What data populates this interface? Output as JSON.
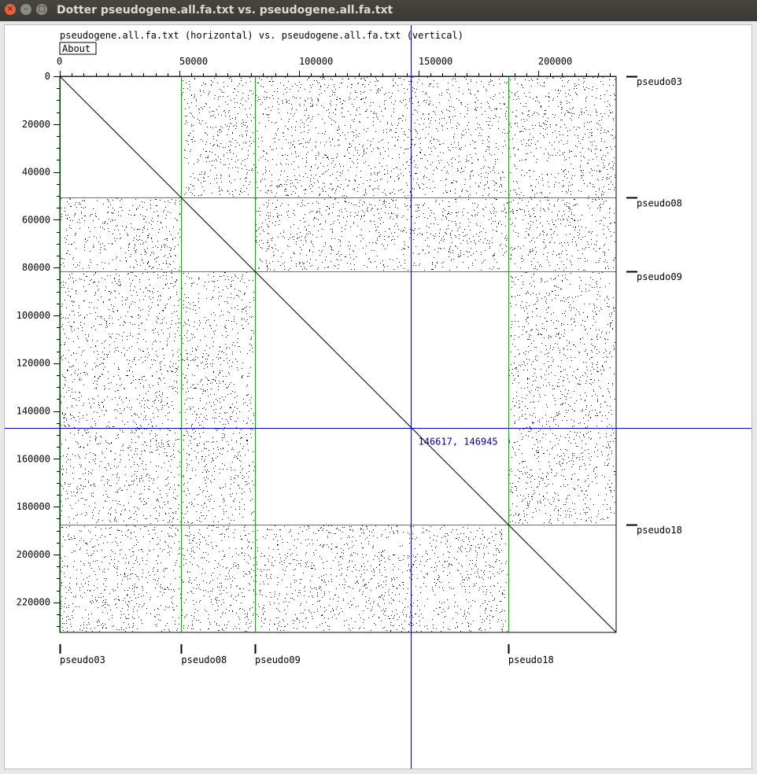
{
  "window": {
    "title": "Dotter pseudogene.all.fa.txt vs. pseudogene.all.fa.txt",
    "close_glyph": "×",
    "minimize_glyph": "–",
    "maximize_glyph": "□"
  },
  "plot": {
    "header": "pseudogene.all.fa.txt (horizontal) vs. pseudogene.all.fa.txt (vertical)",
    "about_label": "About",
    "seq_length": 232600,
    "x_ticks": [
      "0",
      "50000",
      "100000",
      "150000",
      "200000"
    ],
    "y_ticks": [
      "0",
      "20000",
      "40000",
      "60000",
      "80000",
      "100000",
      "120000",
      "140000",
      "160000",
      "180000",
      "200000",
      "220000"
    ],
    "sequences": [
      {
        "name": "pseudo03",
        "start": 0
      },
      {
        "name": "pseudo08",
        "start": 50800
      },
      {
        "name": "pseudo09",
        "start": 81600
      },
      {
        "name": "pseudo18",
        "start": 187500
      }
    ],
    "crosshair": {
      "x": 146617,
      "y": 146945,
      "label": "146617, 146945"
    },
    "colors": {
      "boundary": "#1aa51a",
      "crosshair": "#0000c8",
      "dots": "#000000",
      "diagonal": "#000000"
    }
  }
}
